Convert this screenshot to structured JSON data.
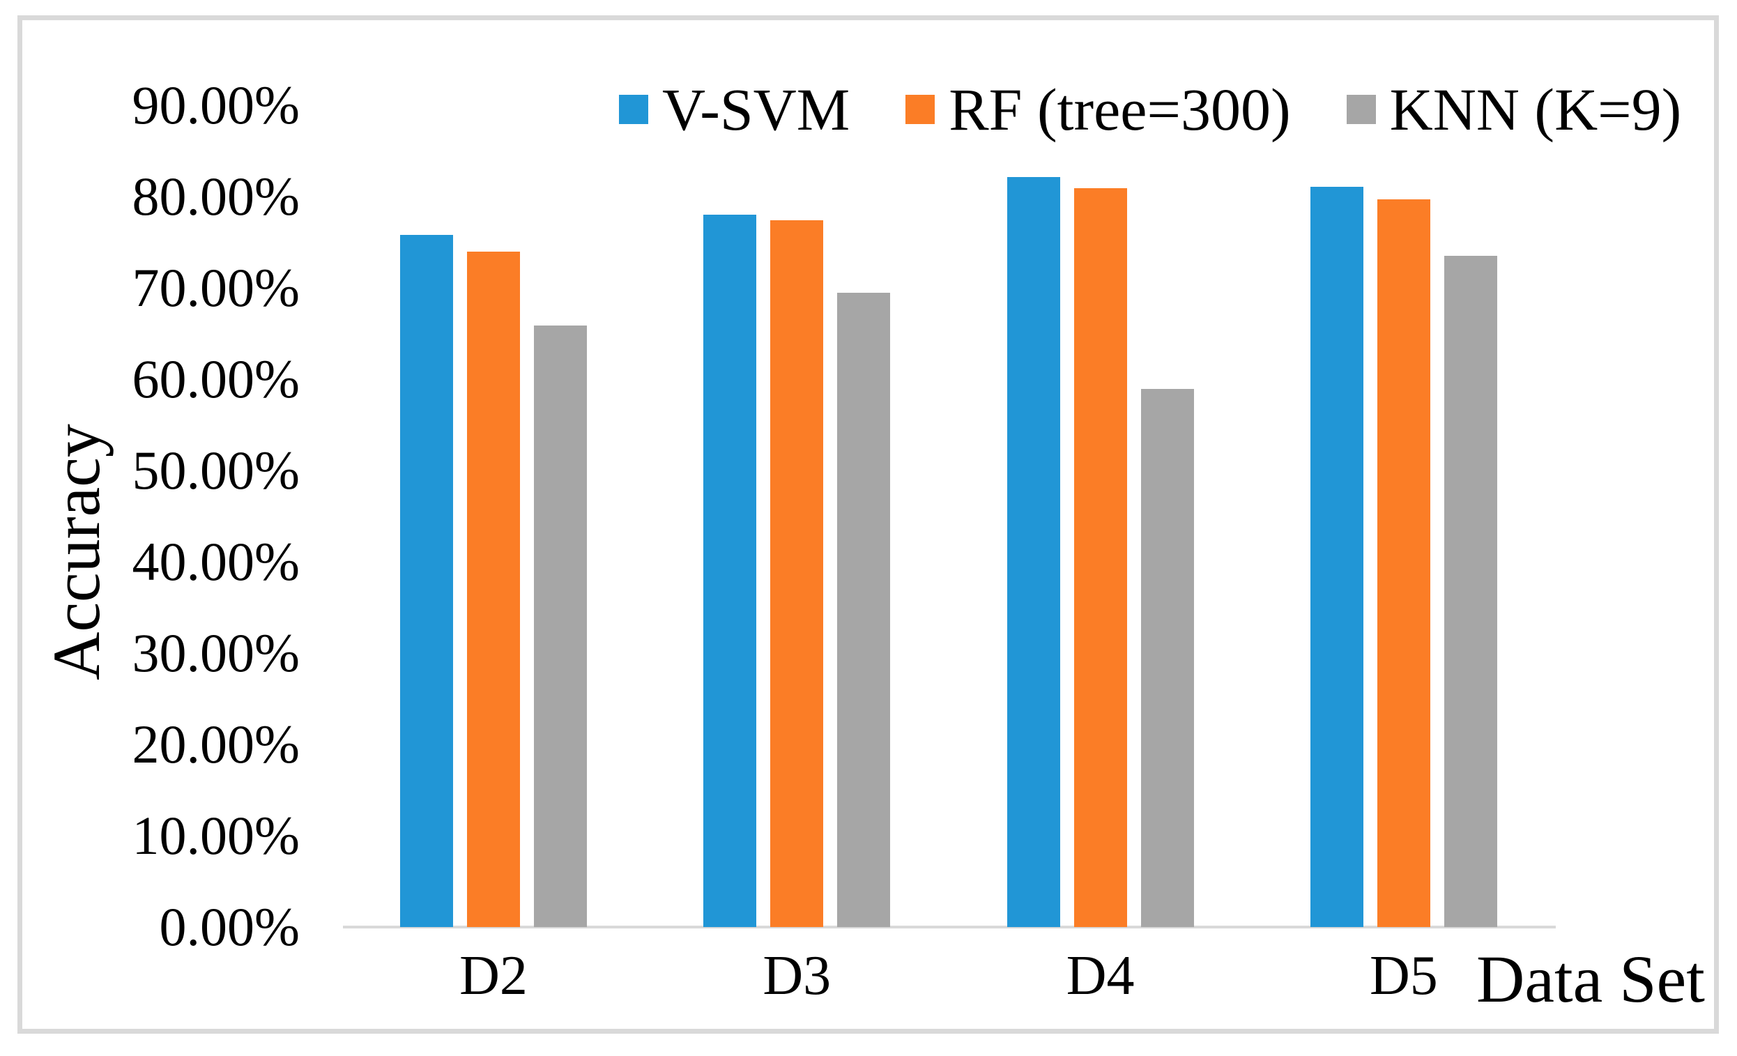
{
  "chart_data": {
    "type": "bar",
    "title": "",
    "xlabel": "Data Set",
    "ylabel": "Accuracy",
    "unit": "%",
    "categories": [
      "D2",
      "D3",
      "D4",
      "D5"
    ],
    "series": [
      {
        "name": "V-SVM",
        "color": "#2196D6",
        "values": [
          75.8,
          78.0,
          82.1,
          81.1
        ]
      },
      {
        "name": "RF (tree=300)",
        "color": "#FB7D26",
        "values": [
          74.0,
          77.4,
          80.9,
          79.7
        ]
      },
      {
        "name": "KNN (K=9)",
        "color": "#A6A6A6",
        "values": [
          65.9,
          69.5,
          58.9,
          73.5
        ]
      }
    ],
    "y_ticks": [
      "0.00%",
      "10.00%",
      "20.00%",
      "30.00%",
      "40.00%",
      "50.00%",
      "60.00%",
      "70.00%",
      "80.00%",
      "90.00%"
    ],
    "ylim": [
      0,
      90
    ],
    "grid": false,
    "legend_position": "top",
    "axis_line_color": "#D9D9D9",
    "frame_border_color": "#D9D9D9",
    "text_color": "#000000"
  }
}
